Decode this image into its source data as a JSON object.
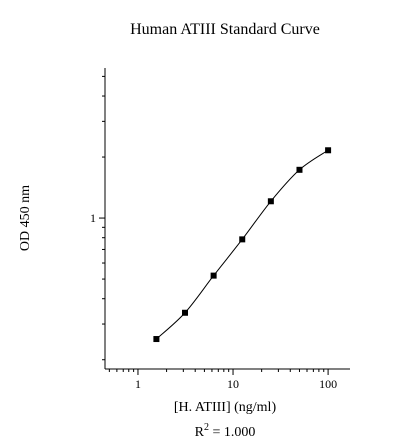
{
  "chart_data": {
    "type": "line",
    "title": "Human ATIII Standard Curve",
    "xlabel": "[H. ATIII] (ng/ml)",
    "ylabel": "OD 450 nm",
    "x_scale": "log",
    "y_scale": "log",
    "xlim": [
      0.45,
      170
    ],
    "ylim": [
      0.18,
      5.5
    ],
    "x_tick_labels": [
      "1",
      "10",
      "100"
    ],
    "x_tick_values": [
      1,
      10,
      100
    ],
    "y_tick_labels": [
      "1"
    ],
    "y_tick_values": [
      1
    ],
    "series": [
      {
        "x": [
          1.5625,
          3.125,
          6.25,
          12.5,
          25,
          50,
          100
        ],
        "y": [
          0.253,
          0.341,
          0.52,
          0.785,
          1.21,
          1.73,
          2.16
        ]
      }
    ],
    "grid": false,
    "legend": "none",
    "annotation": {
      "text": "R",
      "superscript": "2",
      "suffix": " = 1.000"
    }
  }
}
